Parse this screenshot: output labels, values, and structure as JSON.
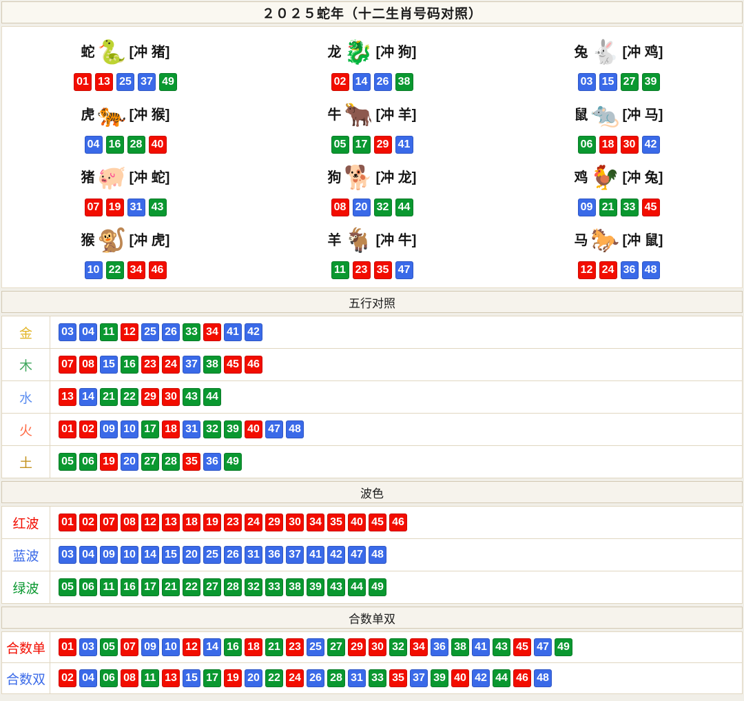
{
  "title": "２０２５蛇年（十二生肖号码对照）",
  "ball_hex": {
    "red": "#f20d00",
    "blue": "#3a6ae8",
    "green": "#0a9830"
  },
  "ball_groups": {
    "red": [
      "01",
      "02",
      "07",
      "08",
      "12",
      "13",
      "18",
      "19",
      "23",
      "24",
      "29",
      "30",
      "34",
      "35",
      "40",
      "45",
      "46"
    ],
    "blue": [
      "03",
      "04",
      "09",
      "10",
      "14",
      "15",
      "20",
      "25",
      "26",
      "31",
      "36",
      "37",
      "41",
      "42",
      "47",
      "48"
    ],
    "green": [
      "05",
      "06",
      "11",
      "16",
      "17",
      "21",
      "22",
      "27",
      "28",
      "32",
      "33",
      "38",
      "39",
      "43",
      "44",
      "49"
    ]
  },
  "zodiac": {
    "items": [
      {
        "name": "蛇",
        "icon": "snake",
        "glyph": "🐍",
        "icon_color": "#5aa339",
        "clash": "[冲 猪]",
        "numbers": [
          "01",
          "13",
          "25",
          "37",
          "49"
        ]
      },
      {
        "name": "龙",
        "icon": "dragon",
        "glyph": "🐉",
        "icon_color": "#e87820",
        "clash": "[冲 狗]",
        "numbers": [
          "02",
          "14",
          "26",
          "38"
        ]
      },
      {
        "name": "兔",
        "icon": "rabbit",
        "glyph": "🐇",
        "icon_color": "#a88de0",
        "clash": "[冲 鸡]",
        "numbers": [
          "03",
          "15",
          "27",
          "39"
        ]
      },
      {
        "name": "虎",
        "icon": "tiger",
        "glyph": "🐅",
        "icon_color": "#e8901f",
        "clash": "[冲 猴]",
        "numbers": [
          "04",
          "16",
          "28",
          "40"
        ]
      },
      {
        "name": "牛",
        "icon": "ox",
        "glyph": "🐂",
        "icon_color": "#e06a6a",
        "clash": "[冲 羊]",
        "numbers": [
          "05",
          "17",
          "29",
          "41"
        ]
      },
      {
        "name": "鼠",
        "icon": "rat",
        "glyph": "🐀",
        "icon_color": "#57c8bf",
        "clash": "[冲 马]",
        "numbers": [
          "06",
          "18",
          "30",
          "42"
        ]
      },
      {
        "name": "猪",
        "icon": "pig",
        "glyph": "🐖",
        "icon_color": "#f0a0c0",
        "clash": "[冲 蛇]",
        "numbers": [
          "07",
          "19",
          "31",
          "43"
        ]
      },
      {
        "name": "狗",
        "icon": "dog",
        "glyph": "🐕",
        "icon_color": "#86b7e8",
        "clash": "[冲 龙]",
        "numbers": [
          "08",
          "20",
          "32",
          "44"
        ]
      },
      {
        "name": "鸡",
        "icon": "rooster",
        "glyph": "🐓",
        "icon_color": "#c79a1e",
        "clash": "[冲 兔]",
        "numbers": [
          "09",
          "21",
          "33",
          "45"
        ]
      },
      {
        "name": "猴",
        "icon": "monkey",
        "glyph": "🐒",
        "icon_color": "#e8a070",
        "clash": "[冲 虎]",
        "numbers": [
          "10",
          "22",
          "34",
          "46"
        ]
      },
      {
        "name": "羊",
        "icon": "goat",
        "glyph": "🐐",
        "icon_color": "#e2c22e",
        "clash": "[冲 牛]",
        "numbers": [
          "11",
          "23",
          "35",
          "47"
        ]
      },
      {
        "name": "马",
        "icon": "horse",
        "glyph": "🐎",
        "icon_color": "#b03020",
        "clash": "[冲 鼠]",
        "numbers": [
          "12",
          "24",
          "36",
          "48"
        ]
      }
    ]
  },
  "sections": [
    {
      "id": "five-elements",
      "header": "五行对照",
      "rows": [
        {
          "label": "金",
          "label_color": "#e3b62a",
          "numbers": [
            "03",
            "04",
            "11",
            "12",
            "25",
            "26",
            "33",
            "34",
            "41",
            "42"
          ]
        },
        {
          "label": "木",
          "label_color": "#41a85f",
          "numbers": [
            "07",
            "08",
            "15",
            "16",
            "23",
            "24",
            "37",
            "38",
            "45",
            "46"
          ]
        },
        {
          "label": "水",
          "label_color": "#5b8df0",
          "numbers": [
            "13",
            "14",
            "21",
            "22",
            "29",
            "30",
            "43",
            "44"
          ]
        },
        {
          "label": "火",
          "label_color": "#ff6a45",
          "numbers": [
            "01",
            "02",
            "09",
            "10",
            "17",
            "18",
            "31",
            "32",
            "39",
            "40",
            "47",
            "48"
          ]
        },
        {
          "label": "土",
          "label_color": "#c3921e",
          "numbers": [
            "05",
            "06",
            "19",
            "20",
            "27",
            "28",
            "35",
            "36",
            "49"
          ]
        }
      ]
    },
    {
      "id": "waves",
      "header": "波色",
      "rows": [
        {
          "label": "红波",
          "label_color": "#f20d00",
          "numbers": [
            "01",
            "02",
            "07",
            "08",
            "12",
            "13",
            "18",
            "19",
            "23",
            "24",
            "29",
            "30",
            "34",
            "35",
            "40",
            "45",
            "46"
          ]
        },
        {
          "label": "蓝波",
          "label_color": "#3a6ae8",
          "numbers": [
            "03",
            "04",
            "09",
            "10",
            "14",
            "15",
            "20",
            "25",
            "26",
            "31",
            "36",
            "37",
            "41",
            "42",
            "47",
            "48"
          ]
        },
        {
          "label": "绿波",
          "label_color": "#0a9830",
          "numbers": [
            "05",
            "06",
            "11",
            "16",
            "17",
            "21",
            "22",
            "27",
            "28",
            "32",
            "33",
            "38",
            "39",
            "43",
            "44",
            "49"
          ]
        }
      ]
    },
    {
      "id": "sum-odd-even",
      "header": "合数单双",
      "rows": [
        {
          "label": "合数单",
          "label_color": "#f20d00",
          "numbers": [
            "01",
            "03",
            "05",
            "07",
            "09",
            "10",
            "12",
            "14",
            "16",
            "18",
            "21",
            "23",
            "25",
            "27",
            "29",
            "30",
            "32",
            "34",
            "36",
            "38",
            "41",
            "43",
            "45",
            "47",
            "49"
          ]
        },
        {
          "label": "合数双",
          "label_color": "#3a6ae8",
          "numbers": [
            "02",
            "04",
            "06",
            "08",
            "11",
            "13",
            "15",
            "17",
            "19",
            "20",
            "22",
            "24",
            "26",
            "28",
            "31",
            "33",
            "35",
            "37",
            "39",
            "40",
            "42",
            "44",
            "46",
            "48"
          ]
        }
      ]
    }
  ]
}
